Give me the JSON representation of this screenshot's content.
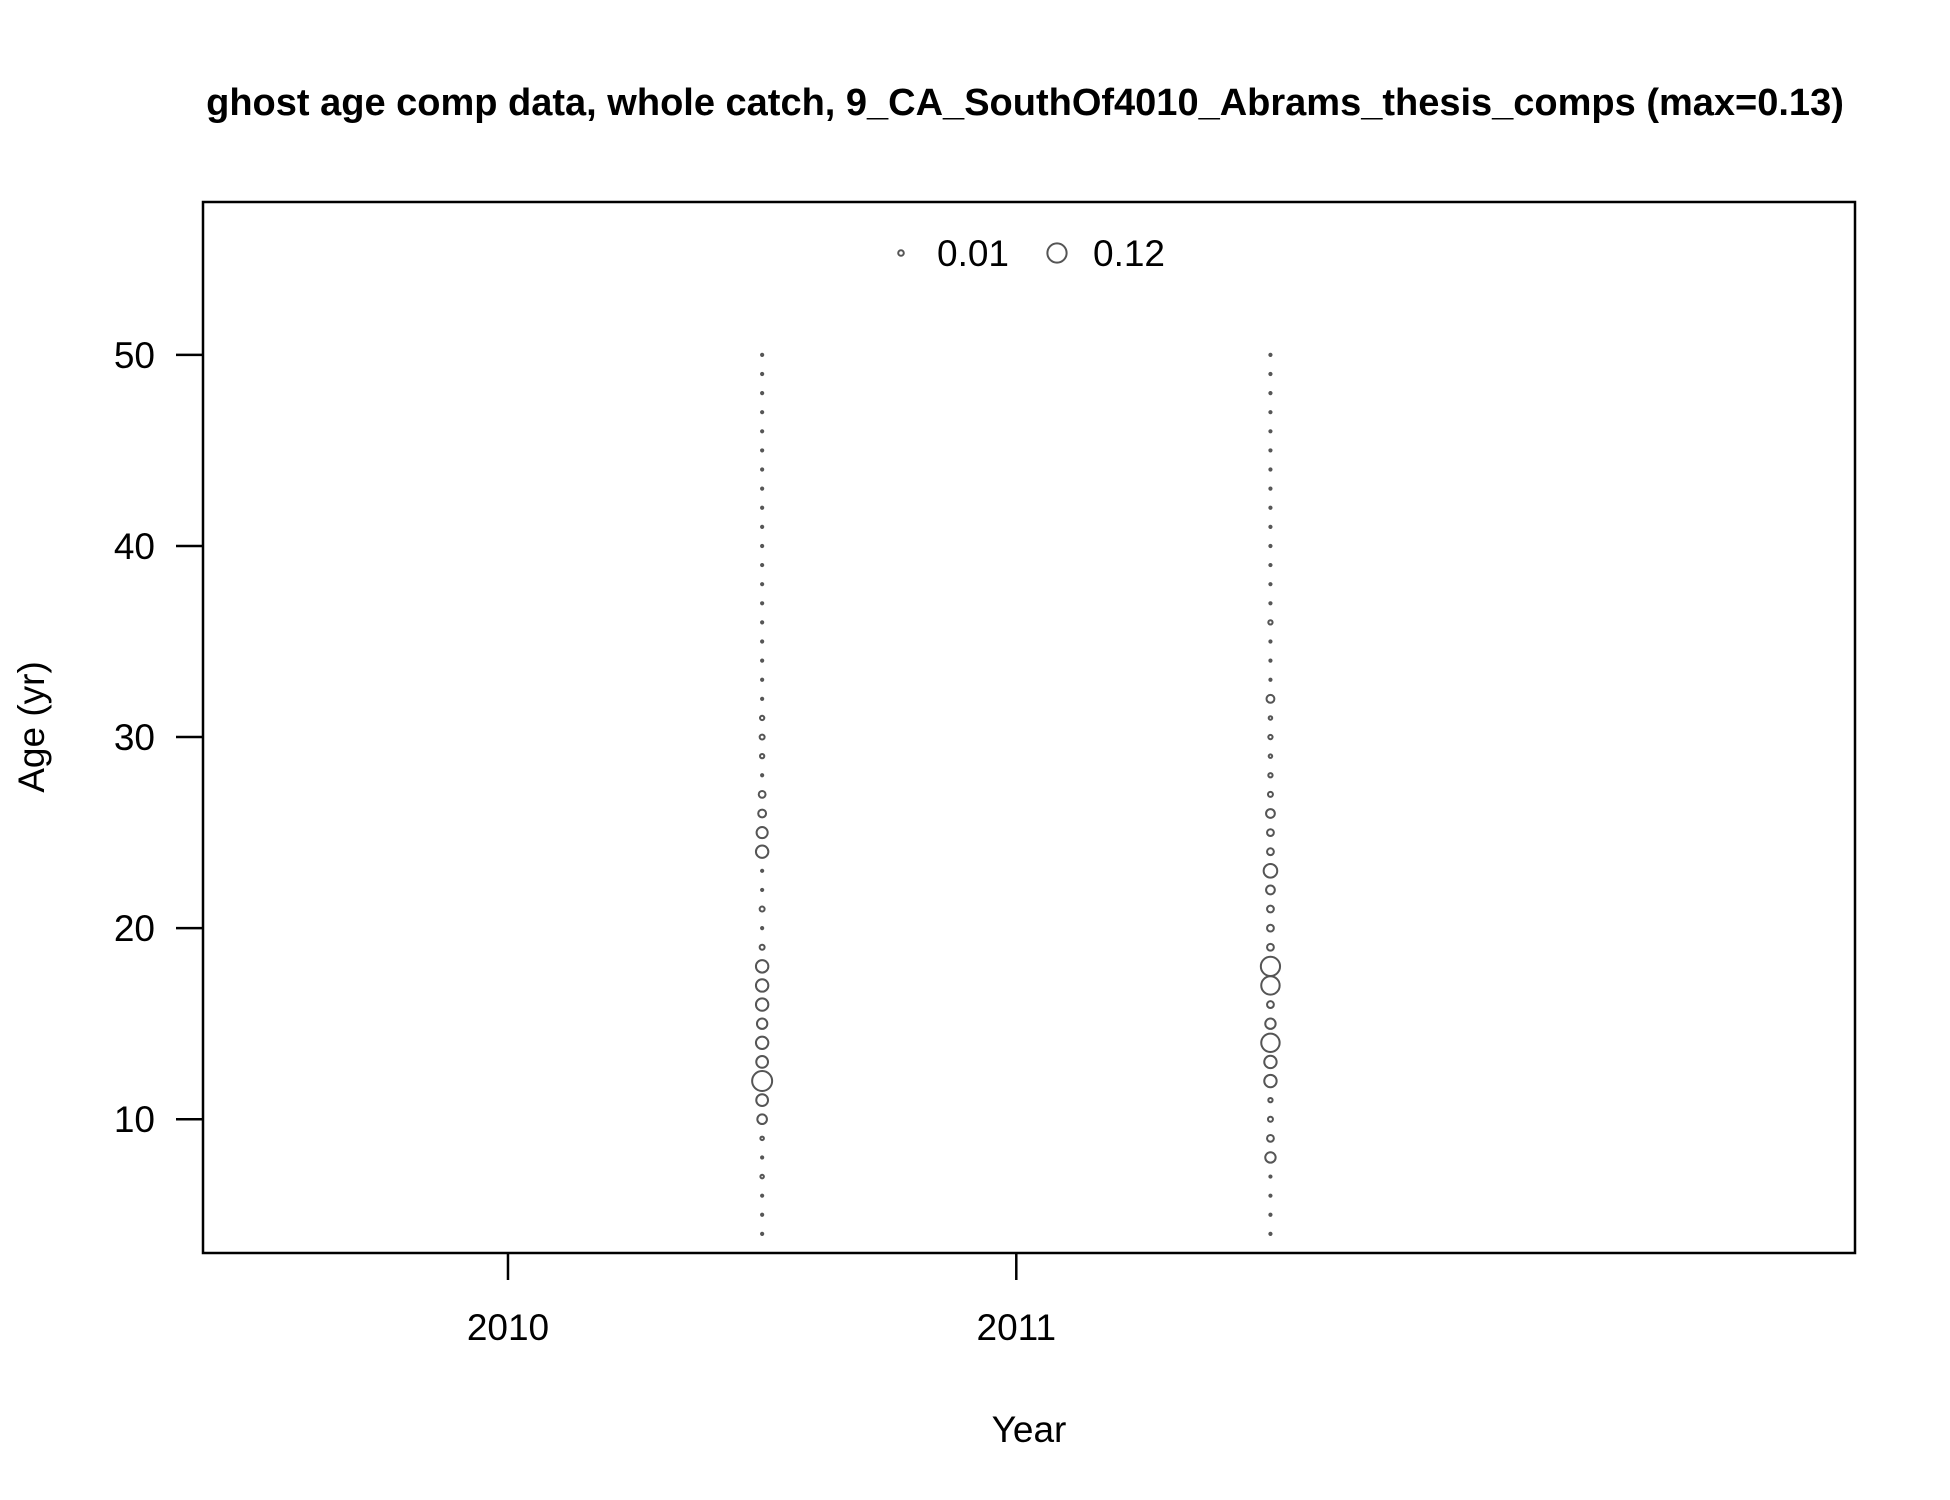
{
  "chart_data": {
    "type": "scatter",
    "subtype": "bubble",
    "title": "ghost age comp data, whole catch, 9_CA_SouthOf4010_Abrams_thesis_comps (max=0.13)",
    "xlabel": "Year",
    "ylabel": "Age (yr)",
    "xlim": [
      2009.4,
      2012.65
    ],
    "ylim": [
      3,
      58
    ],
    "x_ticks": [
      2010,
      2011
    ],
    "x_tick_labels": [
      "2010",
      "2011"
    ],
    "y_ticks": [
      10,
      20,
      30,
      40,
      50
    ],
    "y_tick_labels": [
      "10",
      "20",
      "30",
      "40",
      "50"
    ],
    "grid": false,
    "legend_placement": "top-center",
    "legend": [
      {
        "label": "0.01",
        "value": 0.01
      },
      {
        "label": "0.12",
        "value": 0.12
      }
    ],
    "size_max_value": 0.13,
    "marker": "open-circle",
    "colors": {
      "marker": "#555555",
      "axis": "#000000"
    },
    "series": [
      {
        "x": 2010.5,
        "points": [
          {
            "age": 4,
            "value": 0.0005
          },
          {
            "age": 5,
            "value": 0.0005
          },
          {
            "age": 6,
            "value": 0.0005
          },
          {
            "age": 7,
            "value": 0.004
          },
          {
            "age": 8,
            "value": 0.0005
          },
          {
            "age": 9,
            "value": 0.004
          },
          {
            "age": 10,
            "value": 0.03
          },
          {
            "age": 11,
            "value": 0.045
          },
          {
            "age": 12,
            "value": 0.13
          },
          {
            "age": 13,
            "value": 0.045
          },
          {
            "age": 14,
            "value": 0.05
          },
          {
            "age": 15,
            "value": 0.035
          },
          {
            "age": 16,
            "value": 0.05
          },
          {
            "age": 17,
            "value": 0.05
          },
          {
            "age": 18,
            "value": 0.05
          },
          {
            "age": 19,
            "value": 0.008
          },
          {
            "age": 20,
            "value": 0.0005
          },
          {
            "age": 21,
            "value": 0.008
          },
          {
            "age": 22,
            "value": 0.0005
          },
          {
            "age": 23,
            "value": 0.0005
          },
          {
            "age": 24,
            "value": 0.05
          },
          {
            "age": 25,
            "value": 0.04
          },
          {
            "age": 26,
            "value": 0.02
          },
          {
            "age": 27,
            "value": 0.015
          },
          {
            "age": 28,
            "value": 0.0005
          },
          {
            "age": 29,
            "value": 0.006
          },
          {
            "age": 30,
            "value": 0.008
          },
          {
            "age": 31,
            "value": 0.006
          },
          {
            "age": 32,
            "value": 0.0005
          },
          {
            "age": 33,
            "value": 0.0005
          },
          {
            "age": 34,
            "value": 0.0005
          },
          {
            "age": 35,
            "value": 0.0005
          },
          {
            "age": 36,
            "value": 0.0005
          },
          {
            "age": 37,
            "value": 0.0005
          },
          {
            "age": 38,
            "value": 0.0005
          },
          {
            "age": 39,
            "value": 0.0005
          },
          {
            "age": 40,
            "value": 0.0005
          },
          {
            "age": 41,
            "value": 0.0005
          },
          {
            "age": 42,
            "value": 0.0005
          },
          {
            "age": 43,
            "value": 0.0005
          },
          {
            "age": 44,
            "value": 0.0005
          },
          {
            "age": 45,
            "value": 0.0005
          },
          {
            "age": 46,
            "value": 0.0005
          },
          {
            "age": 47,
            "value": 0.0005
          },
          {
            "age": 48,
            "value": 0.0005
          },
          {
            "age": 49,
            "value": 0.0005
          },
          {
            "age": 50,
            "value": 0.0005
          }
        ]
      },
      {
        "x": 2011.5,
        "points": [
          {
            "age": 4,
            "value": 0.0005
          },
          {
            "age": 5,
            "value": 0.0005
          },
          {
            "age": 6,
            "value": 0.0005
          },
          {
            "age": 7,
            "value": 0.0005
          },
          {
            "age": 8,
            "value": 0.035
          },
          {
            "age": 9,
            "value": 0.015
          },
          {
            "age": 10,
            "value": 0.008
          },
          {
            "age": 11,
            "value": 0.006
          },
          {
            "age": 12,
            "value": 0.05
          },
          {
            "age": 13,
            "value": 0.05
          },
          {
            "age": 14,
            "value": 0.11
          },
          {
            "age": 15,
            "value": 0.035
          },
          {
            "age": 16,
            "value": 0.015
          },
          {
            "age": 17,
            "value": 0.11
          },
          {
            "age": 18,
            "value": 0.12
          },
          {
            "age": 19,
            "value": 0.015
          },
          {
            "age": 20,
            "value": 0.015
          },
          {
            "age": 21,
            "value": 0.015
          },
          {
            "age": 22,
            "value": 0.025
          },
          {
            "age": 23,
            "value": 0.06
          },
          {
            "age": 24,
            "value": 0.015
          },
          {
            "age": 25,
            "value": 0.015
          },
          {
            "age": 26,
            "value": 0.025
          },
          {
            "age": 27,
            "value": 0.008
          },
          {
            "age": 28,
            "value": 0.006
          },
          {
            "age": 29,
            "value": 0.004
          },
          {
            "age": 30,
            "value": 0.006
          },
          {
            "age": 31,
            "value": 0.004
          },
          {
            "age": 32,
            "value": 0.02
          },
          {
            "age": 33,
            "value": 0.0005
          },
          {
            "age": 34,
            "value": 0.0005
          },
          {
            "age": 35,
            "value": 0.0005
          },
          {
            "age": 36,
            "value": 0.006
          },
          {
            "age": 37,
            "value": 0.0005
          },
          {
            "age": 38,
            "value": 0.0005
          },
          {
            "age": 39,
            "value": 0.0005
          },
          {
            "age": 40,
            "value": 0.0005
          },
          {
            "age": 41,
            "value": 0.0005
          },
          {
            "age": 42,
            "value": 0.0005
          },
          {
            "age": 43,
            "value": 0.0005
          },
          {
            "age": 44,
            "value": 0.0005
          },
          {
            "age": 45,
            "value": 0.0005
          },
          {
            "age": 46,
            "value": 0.0005
          },
          {
            "age": 47,
            "value": 0.0005
          },
          {
            "age": 48,
            "value": 0.0005
          },
          {
            "age": 49,
            "value": 0.0005
          },
          {
            "age": 50,
            "value": 0.0005
          }
        ]
      }
    ]
  }
}
